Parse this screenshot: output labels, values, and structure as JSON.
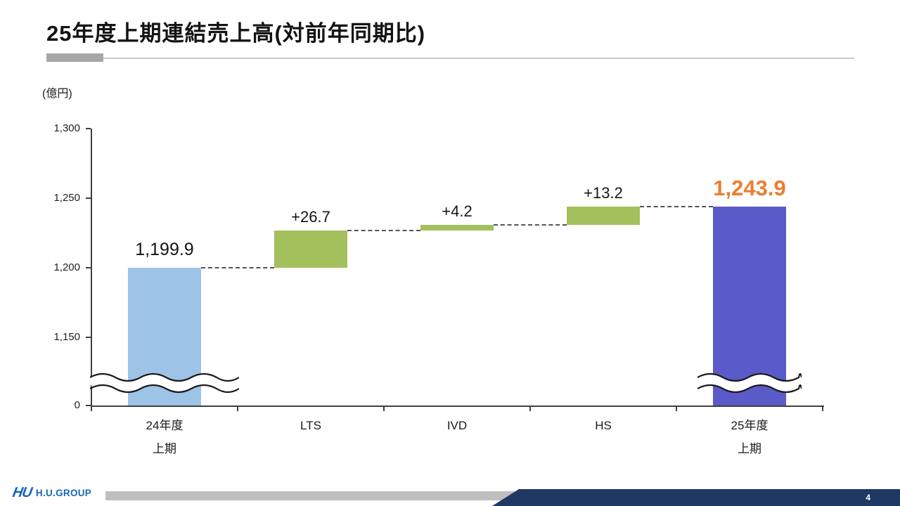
{
  "slide": {
    "title": "25年度上期連結売上高(対前年同期比)",
    "unit_label": "(億円)",
    "page_number": "4",
    "logo_mark": "HU",
    "logo_text": "H.U.GROUP"
  },
  "chart_data": {
    "type": "bar",
    "subtype": "waterfall",
    "title": "25年度上期連結売上高(対前年同期比)",
    "ylabel": "(億円)",
    "ylim_visible": [
      1150,
      1300
    ],
    "axis_break": true,
    "grid": false,
    "connector_style": "dashed",
    "y_ticks": [
      {
        "value": 1300,
        "label": "1,300"
      },
      {
        "value": 1250,
        "label": "1,250"
      },
      {
        "value": 1200,
        "label": "1,200"
      },
      {
        "value": 1150,
        "label": "1,150"
      },
      {
        "value": 0,
        "label": "0"
      }
    ],
    "bars": [
      {
        "id": "fy24-h1",
        "category_lines": [
          "24年度",
          "上期"
        ],
        "kind": "total",
        "value": 1199.9,
        "label": "1,199.9",
        "color": "#9dc3e6",
        "label_style": "total",
        "label_color": "#141414",
        "axis_break": true
      },
      {
        "id": "lts",
        "category_lines": [
          "LTS"
        ],
        "kind": "delta",
        "value": 26.7,
        "label": "+26.7",
        "color": "#a3c05c",
        "label_style": "delta",
        "label_color": "#141414",
        "axis_break": false
      },
      {
        "id": "ivd",
        "category_lines": [
          "IVD"
        ],
        "kind": "delta",
        "value": 4.2,
        "label": "+4.2",
        "color": "#a3c05c",
        "label_style": "delta",
        "label_color": "#141414",
        "axis_break": false
      },
      {
        "id": "hs",
        "category_lines": [
          "HS"
        ],
        "kind": "delta",
        "value": 13.2,
        "label": "+13.2",
        "color": "#a3c05c",
        "label_style": "delta",
        "label_color": "#141414",
        "axis_break": false
      },
      {
        "id": "fy25-h1",
        "category_lines": [
          "25年度",
          "上期"
        ],
        "kind": "total",
        "value": 1243.9,
        "label": "1,243.9",
        "color": "#5a5ac8",
        "label_style": "highlight",
        "label_color": "#ed7d31",
        "axis_break": true
      }
    ]
  }
}
